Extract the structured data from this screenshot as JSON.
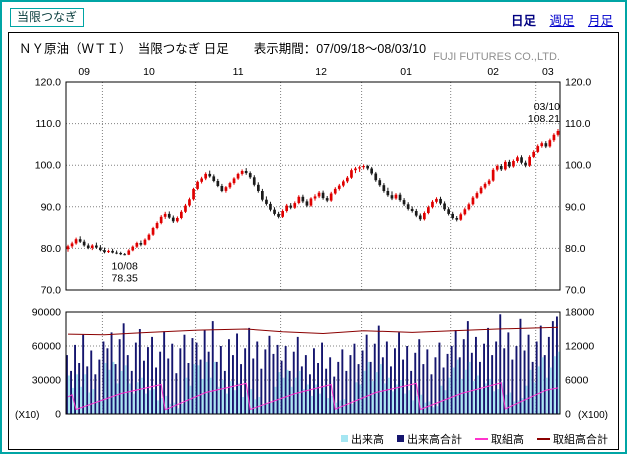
{
  "header": {
    "contract_label": "当限つなぎ",
    "nav": {
      "daily": "日足",
      "weekly": "週足",
      "monthly": "月足"
    }
  },
  "chart": {
    "title": "ＮＹ原油（ＷＴＩ）　当限つなぎ 日足　　表示期間：07/09/18～08/03/10",
    "company": "FUJI FUTURES CO.,LTD."
  },
  "legend": {
    "items": [
      {
        "label": "出来高",
        "type": "bar",
        "color": "#a5e6f2"
      },
      {
        "label": "出来高合計",
        "type": "bar",
        "color": "#15156e"
      },
      {
        "label": "取組高",
        "type": "line",
        "color": "#ff33cc"
      },
      {
        "label": "取組高合計",
        "type": "line",
        "color": "#8b0000"
      }
    ]
  },
  "chart_data": {
    "type": "candlestick+volume",
    "title": "ＮＹ原油（ＷＴＩ） 当限つなぎ 日足",
    "period": "07/09/18～08/03/10",
    "months": [
      {
        "label": "09",
        "start": 0
      },
      {
        "label": "10",
        "start": 9
      },
      {
        "label": "11",
        "start": 32
      },
      {
        "label": "12",
        "start": 53
      },
      {
        "label": "01",
        "start": 73
      },
      {
        "label": "02",
        "start": 95
      },
      {
        "label": "03",
        "start": 116
      }
    ],
    "price_axis": {
      "min": 70,
      "max": 120,
      "ticks": [
        120,
        110,
        100,
        90,
        80,
        70
      ]
    },
    "volume_axis_left": {
      "max": 90000,
      "ticks": [
        90000,
        60000,
        30000,
        0
      ],
      "scale_note": "(X10)"
    },
    "volume_axis_right": {
      "max": 18000,
      "ticks": [
        18000,
        12000,
        6000,
        0
      ],
      "scale_note": "(X100)"
    },
    "colors": {
      "up": "#e00000",
      "down": "#1a1a1a",
      "vol_total": "#15156e",
      "vol_current": "#a5e6f2",
      "oi_total": "#8b0000",
      "oi_current": "#ff33cc",
      "grid": "#808080"
    },
    "annotations": [
      {
        "index": 14,
        "lines": [
          "10/08",
          "78.35"
        ],
        "position": "below"
      },
      {
        "index": 121,
        "lines": [
          "03/10",
          "108.21"
        ],
        "position": "above"
      }
    ],
    "candles": [
      [
        79.8,
        80.9,
        79.2,
        80.5
      ],
      [
        80.5,
        81.6,
        80.1,
        81.2
      ],
      [
        81.2,
        82.6,
        80.9,
        82.2
      ],
      [
        82.2,
        82.9,
        81.3,
        81.6
      ],
      [
        81.6,
        82.1,
        80.4,
        80.7
      ],
      [
        80.7,
        81.2,
        79.8,
        80.1
      ],
      [
        80.1,
        81.0,
        79.6,
        80.7
      ],
      [
        80.7,
        81.4,
        79.9,
        80.2
      ],
      [
        80.2,
        80.8,
        79.3,
        79.6
      ],
      [
        79.6,
        80.2,
        78.8,
        79.1
      ],
      [
        79.1,
        79.7,
        78.9,
        79.4
      ],
      [
        79.4,
        79.9,
        78.8,
        79.0
      ],
      [
        79.0,
        79.5,
        78.6,
        78.9
      ],
      [
        78.9,
        79.2,
        78.4,
        78.6
      ],
      [
        78.6,
        78.9,
        78.35,
        78.5
      ],
      [
        78.5,
        79.8,
        78.4,
        79.5
      ],
      [
        79.5,
        80.7,
        79.3,
        80.4
      ],
      [
        80.4,
        81.6,
        80.1,
        81.3
      ],
      [
        81.3,
        81.9,
        80.5,
        80.9
      ],
      [
        80.9,
        82.4,
        80.7,
        82.1
      ],
      [
        82.1,
        83.6,
        81.9,
        83.3
      ],
      [
        83.3,
        85.2,
        83.0,
        84.9
      ],
      [
        84.9,
        86.5,
        84.6,
        86.1
      ],
      [
        86.1,
        88.0,
        85.8,
        87.6
      ],
      [
        87.6,
        88.8,
        87.1,
        88.3
      ],
      [
        88.3,
        88.9,
        87.1,
        87.4
      ],
      [
        87.4,
        87.9,
        86.1,
        86.5
      ],
      [
        86.5,
        87.7,
        86.2,
        87.3
      ],
      [
        87.3,
        89.2,
        87.0,
        88.8
      ],
      [
        88.8,
        90.7,
        88.5,
        90.3
      ],
      [
        90.3,
        92.2,
        90.0,
        91.8
      ],
      [
        91.8,
        94.6,
        91.5,
        94.3
      ],
      [
        94.3,
        96.3,
        94.0,
        96.0
      ],
      [
        96.0,
        97.2,
        95.6,
        96.8
      ],
      [
        96.8,
        98.3,
        96.4,
        97.9
      ],
      [
        97.9,
        98.7,
        97.0,
        97.3
      ],
      [
        97.3,
        97.8,
        95.9,
        96.2
      ],
      [
        96.2,
        96.7,
        94.7,
        95.0
      ],
      [
        95.0,
        95.5,
        93.5,
        93.8
      ],
      [
        93.8,
        95.0,
        93.4,
        94.7
      ],
      [
        94.7,
        96.0,
        94.3,
        95.7
      ],
      [
        95.7,
        97.1,
        95.3,
        96.8
      ],
      [
        96.8,
        98.2,
        96.5,
        97.9
      ],
      [
        97.9,
        99.0,
        97.5,
        98.6
      ],
      [
        98.6,
        99.3,
        97.7,
        98.1
      ],
      [
        98.1,
        98.5,
        96.7,
        97.1
      ],
      [
        97.1,
        97.6,
        94.9,
        95.3
      ],
      [
        95.3,
        95.9,
        93.4,
        93.8
      ],
      [
        93.8,
        94.3,
        91.3,
        91.7
      ],
      [
        91.7,
        92.5,
        90.3,
        90.7
      ],
      [
        90.7,
        91.2,
        88.9,
        89.3
      ],
      [
        89.3,
        89.9,
        87.9,
        88.3
      ],
      [
        88.3,
        88.8,
        87.2,
        87.6
      ],
      [
        87.6,
        89.4,
        87.3,
        89.0
      ],
      [
        89.0,
        90.7,
        88.6,
        90.3
      ],
      [
        90.3,
        90.9,
        89.4,
        89.8
      ],
      [
        89.8,
        91.3,
        89.5,
        90.9
      ],
      [
        90.9,
        92.8,
        90.6,
        92.4
      ],
      [
        92.4,
        92.9,
        90.9,
        91.3
      ],
      [
        91.3,
        91.8,
        89.9,
        90.3
      ],
      [
        90.3,
        92.3,
        90.0,
        92.0
      ],
      [
        92.0,
        93.0,
        91.5,
        92.5
      ],
      [
        92.5,
        93.8,
        92.1,
        93.4
      ],
      [
        93.4,
        93.9,
        91.7,
        92.1
      ],
      [
        92.1,
        92.6,
        91.1,
        91.5
      ],
      [
        91.5,
        93.6,
        91.2,
        93.2
      ],
      [
        93.2,
        94.7,
        92.9,
        94.3
      ],
      [
        94.3,
        95.5,
        93.9,
        95.1
      ],
      [
        95.1,
        96.5,
        94.7,
        96.1
      ],
      [
        96.1,
        97.4,
        95.7,
        97.0
      ],
      [
        97.0,
        99.2,
        96.7,
        98.8
      ],
      [
        98.8,
        99.6,
        98.1,
        99.2
      ],
      [
        99.2,
        99.9,
        98.4,
        99.5
      ],
      [
        99.5,
        100.2,
        99.0,
        99.8
      ],
      [
        99.8,
        100.1,
        98.8,
        99.2
      ],
      [
        99.2,
        99.6,
        97.6,
        98.0
      ],
      [
        98.0,
        98.4,
        96.0,
        96.4
      ],
      [
        96.4,
        96.9,
        94.8,
        95.2
      ],
      [
        95.2,
        95.7,
        93.4,
        93.8
      ],
      [
        93.8,
        94.6,
        92.4,
        92.8
      ],
      [
        92.8,
        93.7,
        91.6,
        92.0
      ],
      [
        92.0,
        93.3,
        91.7,
        92.9
      ],
      [
        92.9,
        93.4,
        91.2,
        91.6
      ],
      [
        91.6,
        92.1,
        90.2,
        90.6
      ],
      [
        90.6,
        91.1,
        89.1,
        89.5
      ],
      [
        89.5,
        90.1,
        88.6,
        89.0
      ],
      [
        89.0,
        89.5,
        87.5,
        87.9
      ],
      [
        87.9,
        88.4,
        86.6,
        87.0
      ],
      [
        87.0,
        88.9,
        86.7,
        88.5
      ],
      [
        88.5,
        90.3,
        88.2,
        89.9
      ],
      [
        89.9,
        91.6,
        89.6,
        91.2
      ],
      [
        91.2,
        92.3,
        90.8,
        91.9
      ],
      [
        91.9,
        92.4,
        90.4,
        90.8
      ],
      [
        90.8,
        91.3,
        89.0,
        89.4
      ],
      [
        89.4,
        89.9,
        87.9,
        88.3
      ],
      [
        88.3,
        88.8,
        86.9,
        87.3
      ],
      [
        87.3,
        87.8,
        86.5,
        86.9
      ],
      [
        86.9,
        88.6,
        86.6,
        88.2
      ],
      [
        88.2,
        89.8,
        87.9,
        89.4
      ],
      [
        89.4,
        91.0,
        89.1,
        90.6
      ],
      [
        90.6,
        92.6,
        90.3,
        92.2
      ],
      [
        92.2,
        93.7,
        91.9,
        93.3
      ],
      [
        93.3,
        95.0,
        93.0,
        94.6
      ],
      [
        94.6,
        95.9,
        94.2,
        95.5
      ],
      [
        95.5,
        96.7,
        95.1,
        96.3
      ],
      [
        96.3,
        99.3,
        96.0,
        98.9
      ],
      [
        98.9,
        100.2,
        98.5,
        99.8
      ],
      [
        99.8,
        100.3,
        98.6,
        99.0
      ],
      [
        99.0,
        101.2,
        98.7,
        100.8
      ],
      [
        100.8,
        101.3,
        99.3,
        99.7
      ],
      [
        99.7,
        101.4,
        99.4,
        101.0
      ],
      [
        101.0,
        102.3,
        100.6,
        101.9
      ],
      [
        101.9,
        102.4,
        100.2,
        100.6
      ],
      [
        100.6,
        101.1,
        99.5,
        99.9
      ],
      [
        99.9,
        102.4,
        99.6,
        102.0
      ],
      [
        102.0,
        103.6,
        101.7,
        103.2
      ],
      [
        103.2,
        105.0,
        102.9,
        104.6
      ],
      [
        104.6,
        105.7,
        104.2,
        105.3
      ],
      [
        105.3,
        105.8,
        104.1,
        104.5
      ],
      [
        104.5,
        106.4,
        104.2,
        106.0
      ],
      [
        106.0,
        107.7,
        105.6,
        107.3
      ],
      [
        107.3,
        108.7,
        106.9,
        108.21
      ]
    ],
    "volume_total": [
      52000,
      38000,
      61000,
      45000,
      70000,
      42000,
      56000,
      35000,
      48000,
      64000,
      58000,
      72000,
      44000,
      66000,
      80000,
      52000,
      38000,
      63000,
      75000,
      47000,
      59000,
      68000,
      41000,
      55000,
      73000,
      49000,
      62000,
      36000,
      58000,
      70000,
      45000,
      67000,
      63000,
      48000,
      74000,
      55000,
      82000,
      46000,
      60000,
      38000,
      66000,
      52000,
      71000,
      44000,
      58000,
      76000,
      49000,
      64000,
      40000,
      57000,
      69000,
      53000,
      61000,
      47000,
      60000,
      38000,
      55000,
      68000,
      42000,
      52000,
      35000,
      58000,
      45000,
      63000,
      40000,
      50000,
      33000,
      46000,
      57000,
      38000,
      52000,
      62000,
      44000,
      56000,
      70000,
      46000,
      62000,
      78000,
      50000,
      64000,
      42000,
      58000,
      72000,
      48000,
      60000,
      38000,
      54000,
      66000,
      44000,
      57000,
      35000,
      50000,
      63000,
      41000,
      53000,
      60000,
      74000,
      50000,
      66000,
      82000,
      54000,
      68000,
      46000,
      62000,
      76000,
      52000,
      64000,
      88000,
      58000,
      72000,
      48000,
      60000,
      84000,
      56000,
      70000,
      46000,
      64000,
      78000,
      52000,
      68000,
      82000,
      86000
    ],
    "volume_current": [
      34000,
      23000,
      35000,
      24000,
      35000,
      19000,
      22000,
      12000,
      13000,
      45000,
      39000,
      46000,
      27000,
      38000,
      43000,
      27000,
      18000,
      28000,
      32000,
      18000,
      21000,
      22000,
      12000,
      14000,
      16000,
      9000,
      10000,
      5000,
      9000,
      32000,
      25000,
      44000,
      43000,
      31000,
      46000,
      32000,
      46000,
      24000,
      30000,
      18000,
      29000,
      21000,
      27000,
      15000,
      19000,
      22000,
      13000,
      15000,
      8000,
      10000,
      10000,
      24000,
      37000,
      32000,
      39000,
      24000,
      32000,
      38000,
      22000,
      26000,
      16000,
      26000,
      18000,
      24000,
      14000,
      16000,
      10000,
      12000,
      13000,
      8000,
      9000,
      28000,
      26000,
      38000,
      46000,
      29000,
      37000,
      44000,
      27000,
      32000,
      20000,
      26000,
      30000,
      18000,
      21000,
      12000,
      16000,
      17000,
      10000,
      11000,
      6000,
      7000,
      25000,
      21000,
      32000,
      41000,
      48000,
      31000,
      39000,
      46000,
      29000,
      34000,
      22000,
      27000,
      31000,
      20000,
      22000,
      28000,
      17000,
      19000,
      11000,
      12000,
      14000,
      25000,
      39000,
      28000,
      42000,
      50000,
      32000,
      41000,
      51000,
      55000
    ],
    "oi_total_points": [
      [
        0,
        14100
      ],
      [
        9,
        14000
      ],
      [
        20,
        14400
      ],
      [
        32,
        14800
      ],
      [
        44,
        15000
      ],
      [
        53,
        14500
      ],
      [
        63,
        14200
      ],
      [
        73,
        14700
      ],
      [
        85,
        14400
      ],
      [
        95,
        14700
      ],
      [
        106,
        15000
      ],
      [
        121,
        15300
      ]
    ],
    "oi_current_points": [
      [
        0,
        3000
      ],
      [
        1,
        3400
      ],
      [
        2,
        800
      ],
      [
        13,
        3600
      ],
      [
        23,
        5200
      ],
      [
        24,
        750
      ],
      [
        34,
        3800
      ],
      [
        44,
        5400
      ],
      [
        45,
        800
      ],
      [
        56,
        3600
      ],
      [
        65,
        5200
      ],
      [
        66,
        850
      ],
      [
        76,
        3800
      ],
      [
        86,
        5400
      ],
      [
        87,
        800
      ],
      [
        97,
        3600
      ],
      [
        107,
        5500
      ],
      [
        108,
        900
      ],
      [
        118,
        4200
      ],
      [
        121,
        4600
      ]
    ]
  }
}
